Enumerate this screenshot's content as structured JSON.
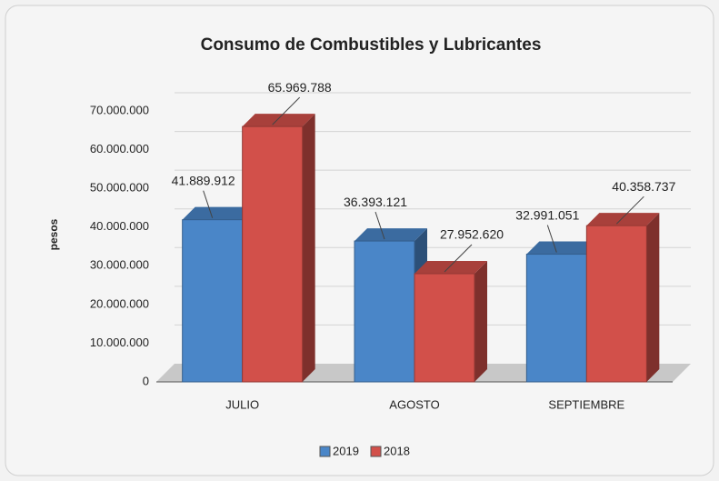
{
  "chart_data": {
    "type": "bar",
    "title": "Consumo de Combustibles y Lubricantes",
    "y_label": "pesos",
    "categories": [
      "JULIO",
      "AGOSTO",
      "SEPTIEMBRE"
    ],
    "series": [
      {
        "name": "2019",
        "color": "#4a86c8",
        "values": [
          41889912,
          36393121,
          32991051
        ],
        "value_labels": [
          "41.889.912",
          "36.393.121",
          "32.991.051"
        ]
      },
      {
        "name": "2018",
        "color": "#d2504a",
        "values": [
          65969788,
          27952620,
          40358737
        ],
        "value_labels": [
          "65.969.788",
          "27.952.620",
          "40.358.737"
        ]
      }
    ],
    "ylim": [
      0,
      70000000
    ],
    "yticks": [
      0,
      {
        "value": 10000000,
        "label": "10.000.000"
      },
      {
        "value": 20000000,
        "label": "20.000.000"
      },
      {
        "value": 30000000,
        "label": "30.000.000"
      },
      {
        "value": 40000000,
        "label": "40.000.000"
      },
      {
        "value": 50000000,
        "label": "50.000.000"
      },
      {
        "value": 60000000,
        "label": "60.000.000"
      },
      {
        "value": 70000000,
        "label": "70.000.000"
      }
    ],
    "grid": true,
    "legend": "bottom"
  }
}
